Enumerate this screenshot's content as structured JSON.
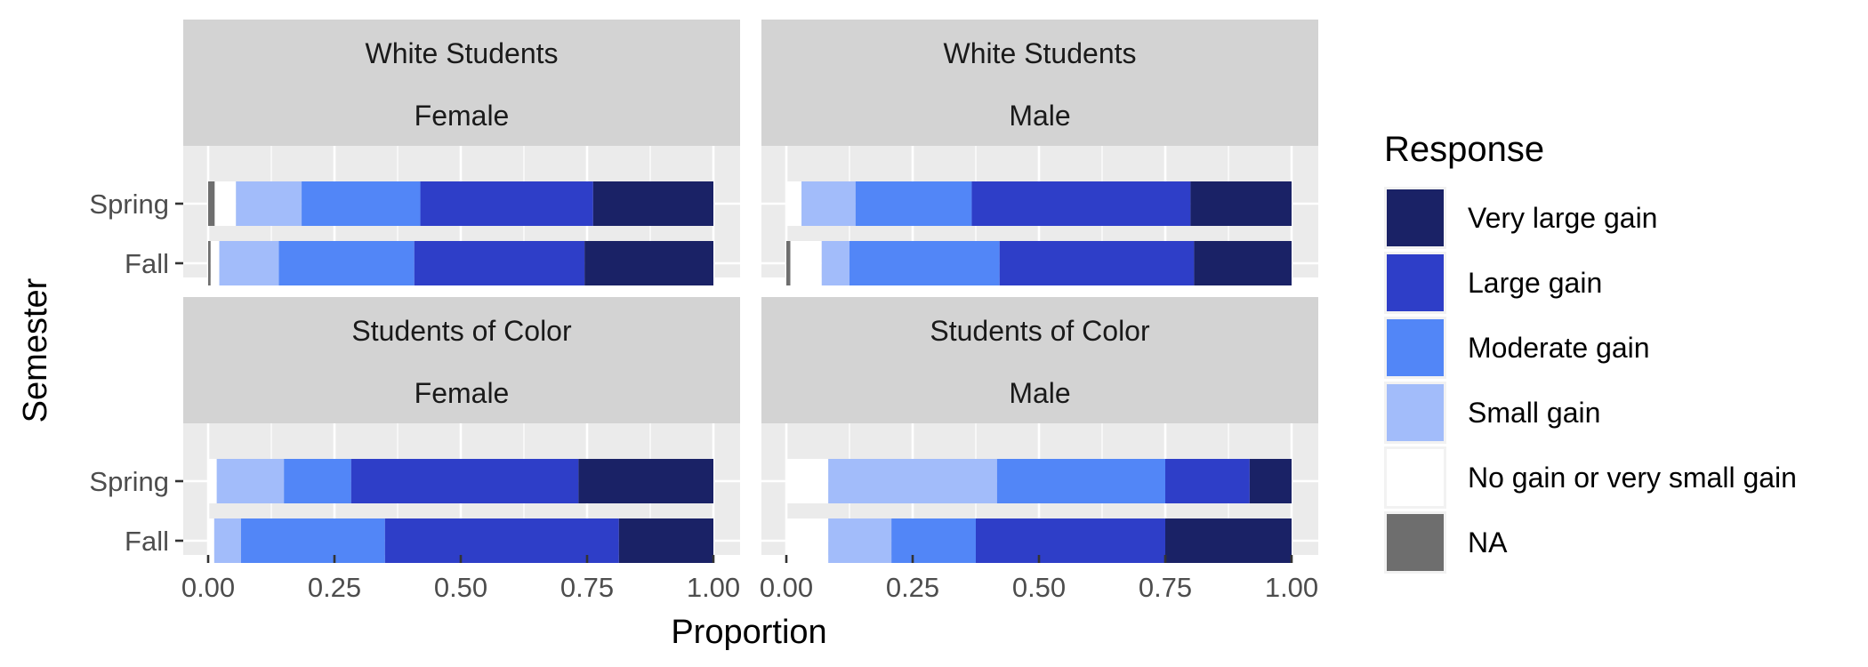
{
  "chart_data": {
    "type": "bar",
    "orientation": "horizontal",
    "stacked": true,
    "xlabel": "Proportion",
    "ylabel": "Semester",
    "xlim": [
      0,
      1
    ],
    "x_ticks": [
      "0.00",
      "0.25",
      "0.50",
      "0.75",
      "1.00"
    ],
    "categories": [
      "Spring",
      "Fall"
    ],
    "legend": {
      "title": "Response",
      "position": "right",
      "items": [
        {
          "name": "Very large gain",
          "color": "#1a2266"
        },
        {
          "name": "Large gain",
          "color": "#2e3ec8"
        },
        {
          "name": "Moderate gain",
          "color": "#5286f7"
        },
        {
          "name": "Small gain",
          "color": "#a2bcfa"
        },
        {
          "name": "No gain or very small gain",
          "color": "#ffffff"
        },
        {
          "name": "NA",
          "color": "#6e6e6e"
        }
      ]
    },
    "panels": [
      {
        "row_label": "White Students",
        "col_label": "Female",
        "bars": [
          {
            "semester": "Spring",
            "NA": 0.013,
            "No gain or very small gain": 0.042,
            "Small gain": 0.13,
            "Moderate gain": 0.235,
            "Large gain": 0.342,
            "Very large gain": 0.238
          },
          {
            "semester": "Fall",
            "NA": 0.005,
            "No gain or very small gain": 0.017,
            "Small gain": 0.118,
            "Moderate gain": 0.268,
            "Large gain": 0.337,
            "Very large gain": 0.255
          }
        ]
      },
      {
        "row_label": "White Students",
        "col_label": "Male",
        "bars": [
          {
            "semester": "Spring",
            "NA": 0.0,
            "No gain or very small gain": 0.03,
            "Small gain": 0.107,
            "Moderate gain": 0.23,
            "Large gain": 0.433,
            "Very large gain": 0.2
          },
          {
            "semester": "Fall",
            "NA": 0.008,
            "No gain or very small gain": 0.062,
            "Small gain": 0.055,
            "Moderate gain": 0.297,
            "Large gain": 0.385,
            "Very large gain": 0.193
          }
        ]
      },
      {
        "row_label": "Students of Color",
        "col_label": "Female",
        "bars": [
          {
            "semester": "Spring",
            "NA": 0.0,
            "No gain or very small gain": 0.017,
            "Small gain": 0.133,
            "Moderate gain": 0.133,
            "Large gain": 0.45,
            "Very large gain": 0.267
          },
          {
            "semester": "Fall",
            "NA": 0.0,
            "No gain or very small gain": 0.012,
            "Small gain": 0.053,
            "Moderate gain": 0.285,
            "Large gain": 0.463,
            "Very large gain": 0.187
          }
        ]
      },
      {
        "row_label": "Students of Color",
        "col_label": "Male",
        "bars": [
          {
            "semester": "Spring",
            "NA": 0.0,
            "No gain or very small gain": 0.083,
            "Small gain": 0.334,
            "Moderate gain": 0.333,
            "Large gain": 0.167,
            "Very large gain": 0.083
          },
          {
            "semester": "Fall",
            "NA": 0.0,
            "No gain or very small gain": 0.083,
            "Small gain": 0.125,
            "Moderate gain": 0.167,
            "Large gain": 0.375,
            "Very large gain": 0.25
          }
        ]
      }
    ]
  }
}
